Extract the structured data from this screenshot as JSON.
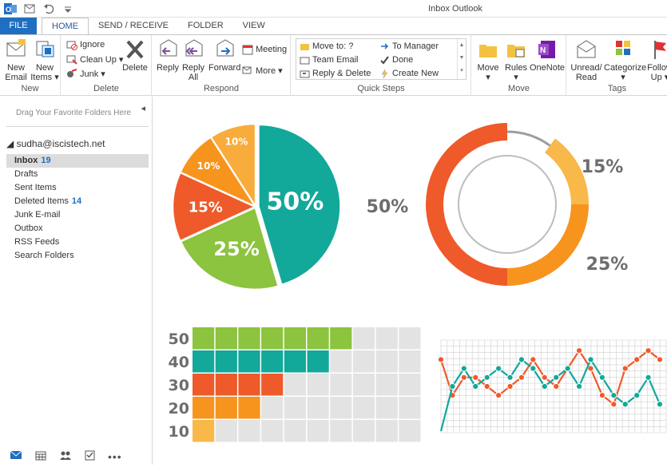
{
  "window": {
    "title": "Inbox  Outlook"
  },
  "tabs": [
    {
      "label": "FILE"
    },
    {
      "label": "HOME"
    },
    {
      "label": "SEND / RECEIVE"
    },
    {
      "label": "FOLDER"
    },
    {
      "label": "VIEW"
    }
  ],
  "ribbon": {
    "new": {
      "new_email": [
        "New",
        "Email"
      ],
      "new_items": [
        "New",
        "Items ▾"
      ],
      "label": "New"
    },
    "delete": {
      "ignore": "Ignore",
      "clean_up": "Clean Up ▾",
      "junk": "Junk ▾",
      "delete": "Delete",
      "label": "Delete"
    },
    "respond": {
      "reply": "Reply",
      "reply_all": [
        "Reply",
        "All"
      ],
      "forward": "Forward",
      "meeting": "Meeting",
      "more": "More ▾",
      "label": "Respond"
    },
    "quick_steps": {
      "move_to": "Move to: ?",
      "team_email": "Team Email",
      "reply_delete": "Reply & Delete",
      "to_manager": "To Manager",
      "done": "Done",
      "create_new": "Create New",
      "label": "Quick Steps"
    },
    "move": {
      "move": "Move",
      "rules": "Rules",
      "onenote": "OneNote",
      "label": "Move"
    },
    "tags": {
      "unread_read": [
        "Unread/",
        "Read"
      ],
      "categorize": "Categorize",
      "follow_up": [
        "Follow",
        "Up ▾"
      ],
      "label": "Tags"
    }
  },
  "sidebar": {
    "favorites_hint": "Drag Your Favorite Folders Here",
    "account": "sudha@iscistech.net",
    "folders": [
      {
        "label": "Inbox",
        "count": "19"
      },
      {
        "label": "Drafts",
        "count": ""
      },
      {
        "label": "Sent Items",
        "count": ""
      },
      {
        "label": "Deleted Items",
        "count": "14"
      },
      {
        "label": "Junk E-mail",
        "count": ""
      },
      {
        "label": "Outbox",
        "count": ""
      },
      {
        "label": "RSS Feeds",
        "count": ""
      },
      {
        "label": "Search Folders",
        "count": ""
      }
    ]
  },
  "chart_data": [
    {
      "type": "pie",
      "labels": [
        "50%",
        "25%",
        "15%",
        "10%",
        "10%"
      ],
      "values": [
        50,
        25,
        15,
        10,
        10
      ],
      "colors": [
        "#12a89a",
        "#8cc33f",
        "#ef5a2a",
        "#f7941d",
        "#f8ac3b"
      ]
    },
    {
      "type": "pie",
      "labels": [
        "50%",
        "25%",
        "15%"
      ],
      "values": [
        50,
        25,
        15
      ],
      "colors": [
        "#ef5a2a",
        "#f7941d",
        "#f8b84a"
      ]
    },
    {
      "type": "bar",
      "categories": [
        "50",
        "40",
        "30",
        "20",
        "10"
      ],
      "values": [
        50,
        40,
        30,
        20,
        10
      ],
      "colors": [
        "#8cc33f",
        "#12a89a",
        "#ef5a2a",
        "#f7941d",
        "#f8b84a"
      ]
    },
    {
      "type": "line",
      "series": [
        {
          "color": "#ef5a2a",
          "values": [
            80,
            40,
            60,
            60,
            50,
            40,
            50,
            60,
            80,
            60,
            50,
            70,
            90,
            70,
            40,
            30,
            70,
            80,
            90,
            80
          ]
        },
        {
          "color": "#12a89a",
          "values": [
            0,
            50,
            70,
            50,
            60,
            70,
            60,
            80,
            70,
            50,
            60,
            70,
            50,
            80,
            60,
            40,
            30,
            40,
            60,
            30
          ]
        }
      ]
    }
  ],
  "colors": {
    "accent": "#1e6fc2",
    "teal": "#12a89a",
    "green": "#8cc33f",
    "orange_red": "#ef5a2a",
    "orange": "#f7941d",
    "light_orange": "#f8b84a"
  }
}
